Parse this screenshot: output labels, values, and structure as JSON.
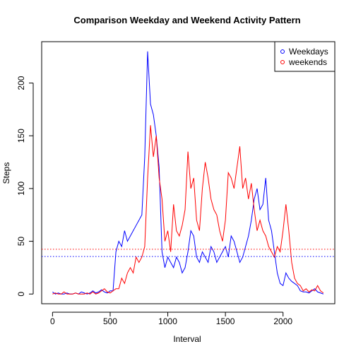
{
  "chart_data": {
    "type": "line",
    "title": "Comparison Weekday and Weekend Activity Pattern",
    "xlabel": "Interval",
    "ylabel": "Steps",
    "x": [
      0,
      25,
      50,
      75,
      100,
      125,
      150,
      175,
      200,
      225,
      250,
      275,
      300,
      325,
      350,
      375,
      400,
      425,
      450,
      475,
      500,
      525,
      550,
      575,
      600,
      625,
      650,
      675,
      700,
      725,
      750,
      775,
      800,
      825,
      850,
      875,
      900,
      925,
      950,
      975,
      1000,
      1025,
      1050,
      1075,
      1100,
      1125,
      1150,
      1175,
      1200,
      1225,
      1250,
      1275,
      1300,
      1325,
      1350,
      1375,
      1400,
      1425,
      1450,
      1475,
      1500,
      1525,
      1550,
      1575,
      1600,
      1625,
      1650,
      1675,
      1700,
      1725,
      1750,
      1775,
      1800,
      1825,
      1850,
      1875,
      1900,
      1925,
      1950,
      1975,
      2000,
      2025,
      2050,
      2075,
      2100,
      2125,
      2150,
      2175,
      2200,
      2225,
      2250,
      2275,
      2300,
      2325,
      2350
    ],
    "series": [
      {
        "name": "Weekdays",
        "color": "#0000ff",
        "values": [
          2,
          0,
          1,
          0,
          0,
          1,
          0,
          0,
          1,
          0,
          2,
          1,
          0,
          1,
          3,
          1,
          2,
          4,
          2,
          1,
          3,
          3,
          40,
          50,
          45,
          60,
          50,
          55,
          60,
          65,
          70,
          75,
          130,
          230,
          180,
          170,
          150,
          120,
          40,
          25,
          35,
          30,
          25,
          35,
          30,
          20,
          25,
          40,
          60,
          55,
          35,
          30,
          40,
          35,
          30,
          45,
          40,
          30,
          35,
          40,
          45,
          35,
          55,
          50,
          40,
          30,
          35,
          45,
          55,
          70,
          90,
          100,
          80,
          85,
          110,
          70,
          60,
          40,
          20,
          10,
          8,
          20,
          15,
          12,
          10,
          8,
          3,
          2,
          2,
          1,
          3,
          5,
          2,
          1,
          0
        ]
      },
      {
        "name": "weekends",
        "color": "#ff0000",
        "values": [
          0,
          1,
          0,
          0,
          2,
          0,
          0,
          0,
          1,
          0,
          0,
          0,
          1,
          0,
          2,
          0,
          1,
          3,
          5,
          2,
          1,
          3,
          5,
          5,
          15,
          10,
          20,
          25,
          20,
          35,
          30,
          35,
          45,
          110,
          160,
          130,
          150,
          110,
          90,
          50,
          60,
          40,
          85,
          60,
          55,
          65,
          80,
          135,
          100,
          110,
          70,
          60,
          100,
          125,
          110,
          90,
          80,
          75,
          60,
          50,
          70,
          115,
          110,
          100,
          120,
          140,
          100,
          110,
          90,
          105,
          80,
          60,
          70,
          60,
          55,
          45,
          40,
          35,
          45,
          40,
          60,
          85,
          60,
          30,
          15,
          10,
          8,
          3,
          5,
          2,
          4,
          3,
          8,
          3,
          1
        ]
      }
    ],
    "hlines": [
      {
        "value": 35.6,
        "color": "#0000ff"
      },
      {
        "value": 42.4,
        "color": "#ff0000"
      }
    ],
    "xlim": [
      -94.2,
      2449.2
    ],
    "xticks": [
      0,
      500,
      1000,
      1500,
      2000
    ],
    "ylim": [
      -9.2,
      239.2
    ],
    "yticks": [
      0,
      50,
      100,
      150,
      200
    ],
    "legend": "topright"
  }
}
